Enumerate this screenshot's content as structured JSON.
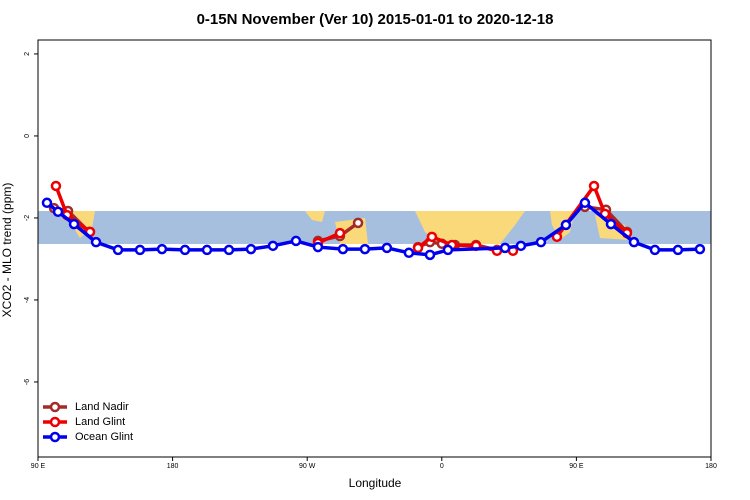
{
  "chart_data": {
    "type": "line",
    "title": "0-15N November (Ver 10)   2015-01-01 to 2020-12-18",
    "x_label": "Longitude",
    "y_label": "XCO2 - MLO trend (ppm)",
    "xlim": [
      90,
      540
    ],
    "xticks": [
      {
        "value": 90,
        "label": "90 E"
      },
      180,
      {
        "value": 270,
        "label": "90 W"
      },
      {
        "value": 360,
        "label": "0"
      },
      {
        "value": 450,
        "label": "90 E"
      },
      {
        "value": 540,
        "label": "180"
      }
    ],
    "ylim": [
      -7.83,
      2.34
    ],
    "yticks": [
      -6,
      -4,
      -2,
      0,
      2
    ],
    "legend": "bottom-left",
    "series": [
      {
        "name": "Land Nadir",
        "color": "#a52a2a",
        "x": [
          100.7,
          110.1,
          124.1,
          null,
          277.2,
          291.9,
          304.0,
          null,
          344.1,
          352.1,
          360.1,
          368.8,
          382.9,
          396.9,
          null,
          455.7,
          469.8,
          483.8
        ],
        "values": [
          -1.76,
          -1.83,
          -2.34,
          null,
          -2.56,
          -2.44,
          -2.12,
          null,
          -2.71,
          -2.59,
          -2.63,
          -2.66,
          -2.66,
          -2.78,
          null,
          -1.73,
          -1.8,
          -2.34
        ]
      },
      {
        "name": "Land Glint",
        "color": "#ee0000",
        "x": [
          102.0,
          109.4,
          124.8,
          null,
          277.2,
          291.9,
          null,
          344.1,
          353.4,
          366.8,
          382.9,
          396.9,
          407.6,
          null,
          437.0,
          461.8,
          469.1,
          483.8
        ],
        "values": [
          -1.22,
          -1.93,
          -2.34,
          null,
          -2.61,
          -2.37,
          null,
          -2.73,
          -2.46,
          -2.66,
          -2.68,
          -2.8,
          -2.8,
          null,
          -2.46,
          -1.22,
          -1.9,
          -2.37
        ]
      },
      {
        "name": "Ocean Glint",
        "color": "#0000ee",
        "x": [
          96.0,
          103.4,
          114.1,
          128.8,
          143.5,
          158.2,
          172.9,
          188.3,
          203.0,
          217.7,
          232.4,
          247.1,
          262.5,
          277.2,
          293.9,
          308.6,
          323.3,
          338.0,
          352.1,
          364.1,
          402.3,
          412.9,
          426.3,
          443.0,
          455.7,
          473.1,
          488.5,
          502.5,
          517.9,
          532.6
        ],
        "values": [
          -1.63,
          -1.85,
          -2.15,
          -2.59,
          -2.78,
          -2.78,
          -2.76,
          -2.78,
          -2.78,
          -2.78,
          -2.76,
          -2.68,
          -2.56,
          -2.71,
          -2.76,
          -2.76,
          -2.73,
          -2.85,
          -2.9,
          -2.78,
          -2.73,
          -2.68,
          -2.59,
          -2.17,
          -1.63,
          -2.15,
          -2.59,
          -2.78,
          -2.78,
          -2.76
        ]
      }
    ]
  }
}
